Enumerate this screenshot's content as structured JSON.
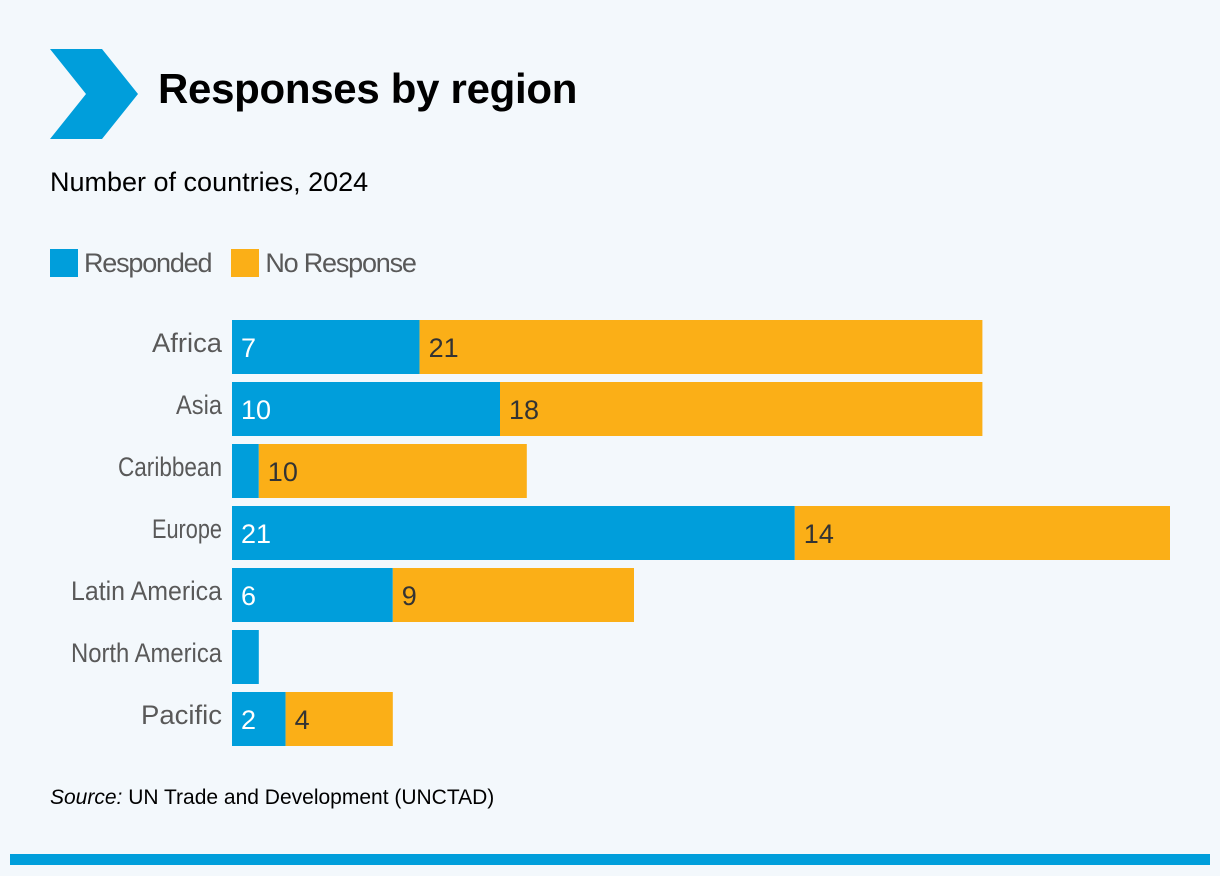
{
  "header": {
    "title": "Responses by region",
    "subtitle": "Number of countries, 2024",
    "icon": "chevron-right-icon"
  },
  "colors": {
    "responded": "#009edb",
    "no_response": "#fbaf17",
    "background": "#f3f8fc",
    "label_gray": "#595959"
  },
  "source": {
    "prefix": "Source:",
    "text": "UN Trade and Development (UNCTAD)"
  },
  "chart_data": {
    "type": "bar",
    "orientation": "horizontal",
    "stacked": true,
    "title": "Responses by region",
    "subtitle": "Number of countries, 2024",
    "xlabel": "",
    "ylabel": "",
    "grid": false,
    "legend_position": "top-left",
    "categories": [
      "Africa",
      "Asia",
      "Caribbean",
      "Europe",
      "Latin America",
      "North America",
      "Pacific"
    ],
    "series": [
      {
        "name": "Responded",
        "color": "#009edb",
        "values": [
          7,
          10,
          1,
          21,
          6,
          1,
          2
        ],
        "labels": [
          "7",
          "10",
          "",
          "21",
          "6",
          "",
          "2"
        ]
      },
      {
        "name": "No Response",
        "color": "#fbaf17",
        "values": [
          21,
          18,
          10,
          14,
          9,
          0,
          4
        ],
        "labels": [
          "21",
          "18",
          "10",
          "14",
          "9",
          "",
          "4"
        ]
      }
    ]
  }
}
